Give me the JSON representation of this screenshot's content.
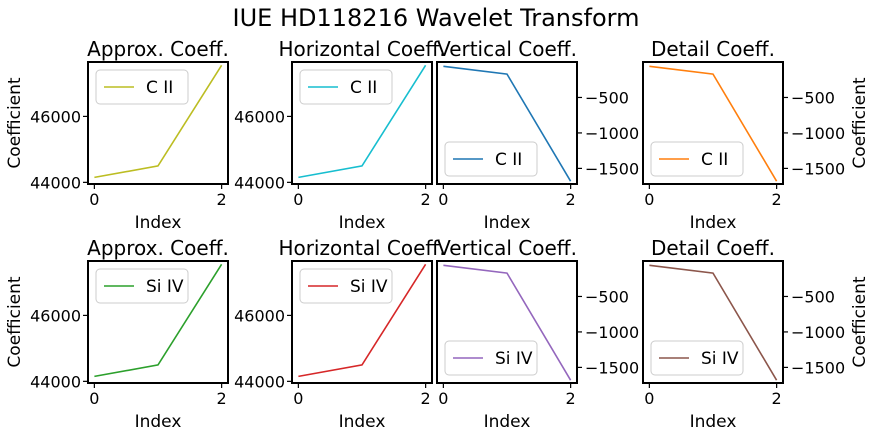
{
  "figure": {
    "title": "IUE HD118216 Wavelet Transform"
  },
  "chart_data": [
    {
      "type": "line",
      "row": 0,
      "col": 0,
      "title": "Approx. Coeff.",
      "xlabel": "Index",
      "ylabel": "Coefficient",
      "x": [
        0,
        1,
        2
      ],
      "series": [
        {
          "name": "C II",
          "values": [
            44150,
            44500,
            47550
          ],
          "color": "#bcbd22"
        }
      ],
      "ylim": [
        43950,
        47650
      ],
      "yticks": [
        44000,
        46000
      ],
      "xticks": [
        0,
        2
      ],
      "yaxis_side": "left",
      "legend": "upper-left"
    },
    {
      "type": "line",
      "row": 0,
      "col": 1,
      "title": "Horizontal Coeff.",
      "xlabel": "Index",
      "ylabel": "",
      "x": [
        0,
        1,
        2
      ],
      "series": [
        {
          "name": "C II",
          "values": [
            44150,
            44500,
            47550
          ],
          "color": "#17becf"
        }
      ],
      "ylim": [
        43950,
        47650
      ],
      "yticks": [
        44000,
        46000
      ],
      "xticks": [
        0,
        2
      ],
      "yaxis_side": "left",
      "legend": "upper-left"
    },
    {
      "type": "line",
      "row": 0,
      "col": 2,
      "title": "Vertical Coeff.",
      "xlabel": "Index",
      "ylabel": "",
      "x": [
        0,
        1,
        2
      ],
      "series": [
        {
          "name": "C II",
          "values": [
            -60,
            -170,
            -1680
          ],
          "color": "#1f77b4"
        }
      ],
      "ylim": [
        -1720,
        0
      ],
      "yticks": [
        -500,
        -1000,
        -1500
      ],
      "xticks": [
        0,
        2
      ],
      "yaxis_side": "right",
      "legend": "lower-left"
    },
    {
      "type": "line",
      "row": 0,
      "col": 3,
      "title": "Detail Coeff.",
      "xlabel": "Index",
      "ylabel": "Coefficient",
      "x": [
        0,
        1,
        2
      ],
      "series": [
        {
          "name": "C II",
          "values": [
            -60,
            -170,
            -1680
          ],
          "color": "#ff7f0e"
        }
      ],
      "ylim": [
        -1720,
        0
      ],
      "yticks": [
        -500,
        -1000,
        -1500
      ],
      "xticks": [
        0,
        2
      ],
      "yaxis_side": "right",
      "legend": "lower-left"
    },
    {
      "type": "line",
      "row": 1,
      "col": 0,
      "title": "Approx. Coeff.",
      "xlabel": "Index",
      "ylabel": "Coefficient",
      "x": [
        0,
        1,
        2
      ],
      "series": [
        {
          "name": "Si IV",
          "values": [
            44150,
            44500,
            47550
          ],
          "color": "#2ca02c"
        }
      ],
      "ylim": [
        43950,
        47650
      ],
      "yticks": [
        44000,
        46000
      ],
      "xticks": [
        0,
        2
      ],
      "yaxis_side": "left",
      "legend": "upper-left"
    },
    {
      "type": "line",
      "row": 1,
      "col": 1,
      "title": "Horizontal Coeff.",
      "xlabel": "Index",
      "ylabel": "",
      "x": [
        0,
        1,
        2
      ],
      "series": [
        {
          "name": "Si IV",
          "values": [
            44150,
            44500,
            47550
          ],
          "color": "#d62728"
        }
      ],
      "ylim": [
        43950,
        47650
      ],
      "yticks": [
        44000,
        46000
      ],
      "xticks": [
        0,
        2
      ],
      "yaxis_side": "left",
      "legend": "upper-left"
    },
    {
      "type": "line",
      "row": 1,
      "col": 2,
      "title": "Vertical Coeff.",
      "xlabel": "Index",
      "ylabel": "",
      "x": [
        0,
        1,
        2
      ],
      "series": [
        {
          "name": "Si IV",
          "values": [
            -60,
            -170,
            -1680
          ],
          "color": "#9467bd"
        }
      ],
      "ylim": [
        -1720,
        0
      ],
      "yticks": [
        -500,
        -1000,
        -1500
      ],
      "xticks": [
        0,
        2
      ],
      "yaxis_side": "right",
      "legend": "lower-left"
    },
    {
      "type": "line",
      "row": 1,
      "col": 3,
      "title": "Detail Coeff.",
      "xlabel": "Index",
      "ylabel": "Coefficient",
      "x": [
        0,
        1,
        2
      ],
      "series": [
        {
          "name": "Si IV",
          "values": [
            -60,
            -170,
            -1680
          ],
          "color": "#8c564b"
        }
      ],
      "ylim": [
        -1720,
        0
      ],
      "yticks": [
        -500,
        -1000,
        -1500
      ],
      "xticks": [
        0,
        2
      ],
      "yaxis_side": "right",
      "legend": "lower-left"
    }
  ]
}
